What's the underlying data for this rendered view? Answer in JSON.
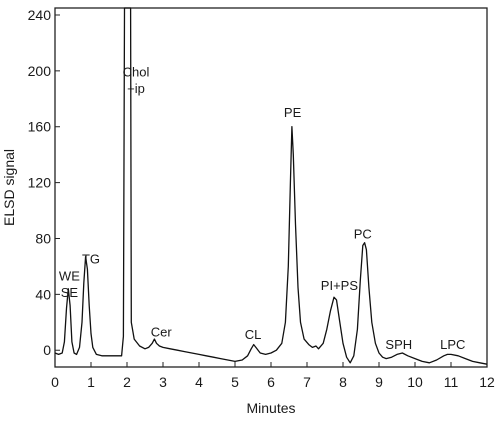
{
  "chart_data": {
    "type": "line",
    "xlabel": "Minutes",
    "ylabel": "ELSD signal",
    "xlim": [
      0,
      12
    ],
    "ylim": [
      -12,
      245
    ],
    "x_ticks": [
      0,
      1,
      2,
      3,
      4,
      5,
      6,
      7,
      8,
      9,
      10,
      11,
      12
    ],
    "y_ticks": [
      0,
      40,
      80,
      120,
      160,
      200,
      240
    ],
    "grid": false,
    "series": [
      {
        "points": [
          [
            0.0,
            -2
          ],
          [
            0.1,
            -3
          ],
          [
            0.2,
            -2
          ],
          [
            0.26,
            6
          ],
          [
            0.32,
            30
          ],
          [
            0.37,
            44
          ],
          [
            0.42,
            32
          ],
          [
            0.47,
            6
          ],
          [
            0.53,
            -2
          ],
          [
            0.6,
            -3
          ],
          [
            0.68,
            2
          ],
          [
            0.75,
            20
          ],
          [
            0.8,
            48
          ],
          [
            0.85,
            67
          ],
          [
            0.9,
            58
          ],
          [
            0.95,
            32
          ],
          [
            1.0,
            12
          ],
          [
            1.05,
            2
          ],
          [
            1.15,
            -3
          ],
          [
            1.3,
            -4
          ],
          [
            1.5,
            -4
          ],
          [
            1.7,
            -4
          ],
          [
            1.85,
            -4
          ],
          [
            1.9,
            10
          ],
          [
            1.93,
            245
          ],
          [
            2.1,
            245
          ],
          [
            2.12,
            20
          ],
          [
            2.2,
            8
          ],
          [
            2.35,
            3
          ],
          [
            2.5,
            1
          ],
          [
            2.6,
            2
          ],
          [
            2.7,
            5
          ],
          [
            2.76,
            8
          ],
          [
            2.82,
            5
          ],
          [
            2.9,
            3
          ],
          [
            3.0,
            2
          ],
          [
            3.2,
            1
          ],
          [
            3.4,
            0
          ],
          [
            3.6,
            -1
          ],
          [
            3.8,
            -2
          ],
          [
            4.0,
            -3
          ],
          [
            4.2,
            -4
          ],
          [
            4.4,
            -5
          ],
          [
            4.6,
            -6
          ],
          [
            4.8,
            -7
          ],
          [
            5.0,
            -8
          ],
          [
            5.2,
            -7
          ],
          [
            5.35,
            -4
          ],
          [
            5.45,
            1
          ],
          [
            5.52,
            4
          ],
          [
            5.58,
            2
          ],
          [
            5.7,
            -2
          ],
          [
            5.85,
            -3
          ],
          [
            6.0,
            -2
          ],
          [
            6.15,
            0
          ],
          [
            6.3,
            5
          ],
          [
            6.4,
            20
          ],
          [
            6.48,
            60
          ],
          [
            6.54,
            120
          ],
          [
            6.58,
            160
          ],
          [
            6.62,
            140
          ],
          [
            6.68,
            90
          ],
          [
            6.75,
            45
          ],
          [
            6.82,
            20
          ],
          [
            6.92,
            8
          ],
          [
            7.05,
            4
          ],
          [
            7.15,
            2
          ],
          [
            7.25,
            3
          ],
          [
            7.32,
            1
          ],
          [
            7.45,
            5
          ],
          [
            7.55,
            15
          ],
          [
            7.65,
            28
          ],
          [
            7.75,
            38
          ],
          [
            7.82,
            36
          ],
          [
            7.9,
            22
          ],
          [
            8.0,
            5
          ],
          [
            8.1,
            -5
          ],
          [
            8.2,
            -9
          ],
          [
            8.3,
            -4
          ],
          [
            8.4,
            15
          ],
          [
            8.48,
            50
          ],
          [
            8.55,
            75
          ],
          [
            8.6,
            77
          ],
          [
            8.65,
            72
          ],
          [
            8.72,
            45
          ],
          [
            8.8,
            20
          ],
          [
            8.9,
            5
          ],
          [
            9.0,
            -2
          ],
          [
            9.1,
            -5
          ],
          [
            9.2,
            -6
          ],
          [
            9.35,
            -5
          ],
          [
            9.5,
            -3
          ],
          [
            9.65,
            -2
          ],
          [
            9.8,
            -4
          ],
          [
            10.0,
            -6
          ],
          [
            10.2,
            -8
          ],
          [
            10.4,
            -9
          ],
          [
            10.6,
            -7
          ],
          [
            10.8,
            -4
          ],
          [
            10.9,
            -3
          ],
          [
            11.0,
            -3
          ],
          [
            11.2,
            -4
          ],
          [
            11.4,
            -6
          ],
          [
            11.6,
            -8
          ],
          [
            11.8,
            -9
          ],
          [
            12.0,
            -10
          ]
        ]
      }
    ],
    "annotations": [
      {
        "text": "WE",
        "x": 0.4,
        "y": 50
      },
      {
        "text": "SE",
        "x": 0.4,
        "y": 38
      },
      {
        "text": "TG",
        "x": 1.0,
        "y": 62
      },
      {
        "text": "Chol",
        "x": 2.25,
        "y": 196
      },
      {
        "text": "+ip",
        "x": 2.25,
        "y": 184
      },
      {
        "text": "Cer",
        "x": 2.95,
        "y": 10
      },
      {
        "text": "CL",
        "x": 5.5,
        "y": 8
      },
      {
        "text": "PE",
        "x": 6.6,
        "y": 167
      },
      {
        "text": "PI+PS",
        "x": 7.9,
        "y": 43
      },
      {
        "text": "PC",
        "x": 8.55,
        "y": 80
      },
      {
        "text": "SPH",
        "x": 9.55,
        "y": 1
      },
      {
        "text": "LPC",
        "x": 11.05,
        "y": 1
      }
    ]
  }
}
